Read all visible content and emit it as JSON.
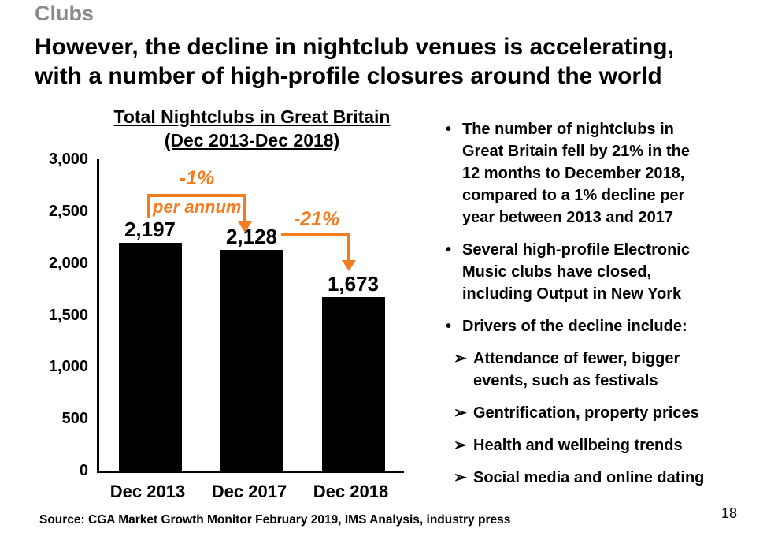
{
  "eyebrow": "Clubs",
  "title": {
    "line1": "However, the decline in nightclub venues is accelerating,",
    "line2": "with a number of high-profile closures around the world"
  },
  "chart": {
    "title_line1": "Total Nightclubs in Great Britain",
    "title_line2": "(Dec 2013-Dec 2018)"
  },
  "chart_data": {
    "type": "bar",
    "title": "Total Nightclubs in Great Britain (Dec 2013-Dec 2018)",
    "categories": [
      "Dec 2013",
      "Dec 2017",
      "Dec 2018"
    ],
    "values": [
      2197,
      2128,
      1673
    ],
    "value_labels": [
      "2,197",
      "2,128",
      "1,673"
    ],
    "xlabel": "",
    "ylabel": "",
    "ylim": [
      0,
      3000
    ],
    "y_ticks": [
      "3,000",
      "2,500",
      "2,000",
      "1,500",
      "1,000",
      "500",
      "0"
    ],
    "grid": false,
    "legend": "none",
    "bar_color": "#000000",
    "annotations": [
      {
        "label": "-1%",
        "sublabel": "per annum",
        "from": "Dec 2013",
        "to": "Dec 2017",
        "color": "#f47c20"
      },
      {
        "label": "-21%",
        "from": "Dec 2017",
        "to": "Dec 2018",
        "color": "#f47c20"
      }
    ]
  },
  "bullets": [
    {
      "level": 1,
      "marker": "•",
      "text": "The number of nightclubs in\nGreat Britain fell by 21% in the\n12 months to December 2018,\ncompared to a 1% decline per\nyear between 2013 and 2017"
    },
    {
      "level": 1,
      "marker": "•",
      "text": "Several high-profile Electronic\nMusic clubs have closed,\nincluding Output in New York"
    },
    {
      "level": 1,
      "marker": "•",
      "text": "Drivers of the decline include:"
    },
    {
      "level": 2,
      "marker": "➢",
      "text": "Attendance of fewer, bigger\nevents, such as festivals"
    },
    {
      "level": 2,
      "marker": "➢",
      "text": "Gentrification, property prices"
    },
    {
      "level": 2,
      "marker": "➢",
      "text": "Health and wellbeing trends"
    },
    {
      "level": 2,
      "marker": "➢",
      "text": "Social media and online dating"
    }
  ],
  "footer": {
    "source": "Source: CGA Market Growth Monitor February 2019, IMS Analysis, industry press",
    "page_number": "18"
  },
  "colors": {
    "accent_orange": "#f47c20",
    "heading_gray": "#8a8a8a",
    "bar_black": "#000000"
  }
}
